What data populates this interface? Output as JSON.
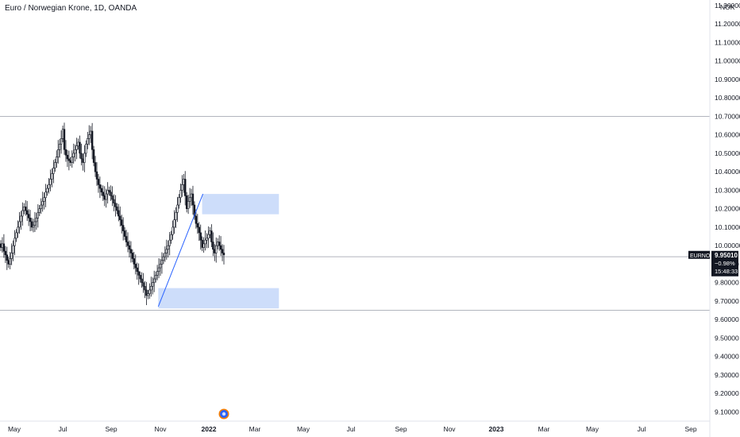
{
  "header": {
    "title": "Euro / Norwegian Krone, 1D, OANDA"
  },
  "price_axis": {
    "currency": "NOK",
    "ticks": [
      "11.30000",
      "11.20000",
      "11.10000",
      "11.00000",
      "10.90000",
      "10.80000",
      "10.70000",
      "10.60000",
      "10.50000",
      "10.40000",
      "10.30000",
      "10.20000",
      "10.10000",
      "10.00000",
      "9.90000",
      "9.80000",
      "9.70000",
      "9.60000",
      "9.50000",
      "9.40000",
      "9.30000",
      "9.20000",
      "9.10000"
    ]
  },
  "last_price_badge": {
    "symbol": "EURNOK",
    "price": "9.95010",
    "change": "−0.98%",
    "countdown": "15:48:33"
  },
  "time_axis": {
    "labels": [
      "May",
      "Jul",
      "Sep",
      "Nov",
      "2022",
      "Mar",
      "May",
      "Jul",
      "Sep",
      "Nov",
      "2023",
      "Mar",
      "May",
      "Jul",
      "Sep"
    ],
    "bold": [
      "2022",
      "2023"
    ]
  },
  "colors": {
    "candle": "#131722",
    "zone_fill": "#bcd2f8",
    "trendline": "#2962ff",
    "horizontal_line": "#b2b5be",
    "badge_bg": "#131722",
    "badge_text": "#ffffff",
    "event_marker": "#2962ff",
    "event_ring": "#f57c00"
  },
  "chart_data": {
    "type": "candlestick",
    "symbol": "EURNOK",
    "interval": "1D",
    "ylim": [
      9.05,
      11.33
    ],
    "x_range": [
      "2021-04-17",
      "2023-10-10"
    ],
    "closes": [
      9.99,
      10.01,
      9.97,
      9.95,
      9.92,
      9.9,
      9.93,
      9.96,
      10.0,
      10.04,
      10.07,
      10.1,
      10.13,
      10.16,
      10.19,
      10.21,
      10.19,
      10.17,
      10.15,
      10.13,
      10.1,
      10.11,
      10.13,
      10.15,
      10.18,
      10.2,
      10.22,
      10.24,
      10.26,
      10.29,
      10.31,
      10.33,
      10.36,
      10.39,
      10.42,
      10.45,
      10.48,
      10.52,
      10.55,
      10.58,
      10.63,
      10.52,
      10.49,
      10.47,
      10.46,
      10.45,
      10.48,
      10.5,
      10.52,
      10.54,
      10.56,
      10.5,
      10.47,
      10.45,
      10.5,
      10.55,
      10.58,
      10.6,
      10.62,
      10.52,
      10.45,
      10.4,
      10.36,
      10.33,
      10.31,
      10.29,
      10.27,
      10.25,
      10.28,
      10.3,
      10.29,
      10.27,
      10.25,
      10.23,
      10.21,
      10.19,
      10.16,
      10.14,
      10.11,
      10.08,
      10.05,
      10.02,
      10.0,
      9.98,
      9.96,
      9.93,
      9.9,
      9.88,
      9.86,
      9.84,
      9.82,
      9.8,
      9.78,
      9.76,
      9.73,
      9.74,
      9.76,
      9.78,
      9.8,
      9.82,
      9.84,
      9.86,
      9.88,
      9.9,
      9.92,
      9.94,
      9.96,
      9.98,
      10.0,
      10.03,
      10.06,
      10.1,
      10.14,
      10.18,
      10.22,
      10.26,
      10.3,
      10.33,
      10.36,
      10.27,
      10.2,
      10.24,
      10.26,
      10.28,
      10.22,
      10.16,
      10.12,
      10.1,
      10.07,
      10.03,
      9.99,
      10.01,
      10.03,
      10.04,
      10.06,
      10.08,
      10.02,
      9.98,
      9.96,
      10.0,
      10.02,
      10.0,
      9.98,
      9.96,
      9.95
    ],
    "trendline": [
      [
        "2021-11-05",
        9.67
      ],
      [
        "2022-01-01",
        10.28
      ]
    ],
    "horizontal_lines": [
      10.7,
      9.94,
      9.65
    ],
    "zones": [
      {
        "from": "2021-12-31",
        "to": "2022-04-08",
        "top": 10.28,
        "bottom": 10.17
      },
      {
        "from": "2021-11-05",
        "to": "2022-04-08",
        "top": 9.77,
        "bottom": 9.66
      }
    ],
    "last_price": 9.9501
  }
}
